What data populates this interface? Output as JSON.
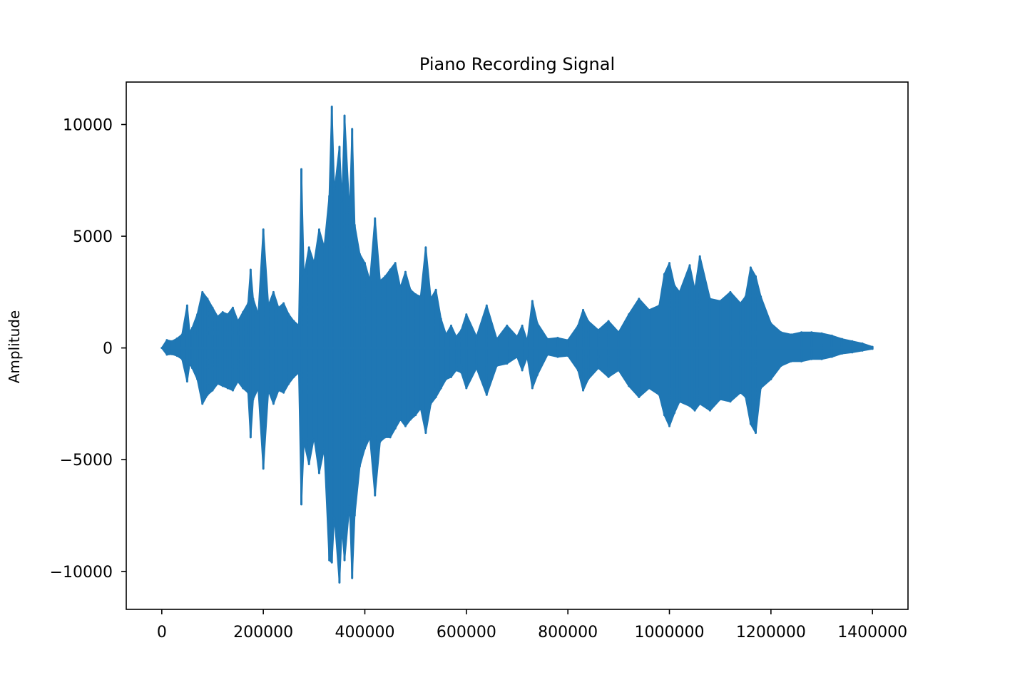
{
  "chart_data": {
    "type": "line",
    "title": "Piano Recording Signal",
    "xlabel": "",
    "ylabel": "Amplitude",
    "xlim": [
      -70000,
      1470000
    ],
    "ylim": [
      -11700,
      11900
    ],
    "grid": false,
    "legend": "none",
    "x_ticks": [
      0,
      200000,
      400000,
      600000,
      800000,
      1000000,
      1200000,
      1400000
    ],
    "x_tick_labels": [
      "0",
      "200000",
      "400000",
      "600000",
      "800000",
      "1000000",
      "1200000",
      "1400000"
    ],
    "y_ticks": [
      -10000,
      -5000,
      0,
      5000,
      10000
    ],
    "y_tick_labels": [
      "−10000",
      "−5000",
      "0",
      "5000",
      "10000"
    ],
    "series": [
      {
        "color": "#1f77b4",
        "x": [
          0,
          10000,
          20000,
          30000,
          40000,
          50000,
          55000,
          60000,
          70000,
          80000,
          90000,
          100000,
          110000,
          120000,
          130000,
          140000,
          150000,
          160000,
          170000,
          175000,
          180000,
          190000,
          200000,
          210000,
          220000,
          230000,
          240000,
          250000,
          260000,
          270000,
          275000,
          280000,
          290000,
          300000,
          310000,
          320000,
          330000,
          335000,
          340000,
          350000,
          355000,
          360000,
          370000,
          375000,
          380000,
          390000,
          400000,
          410000,
          420000,
          430000,
          440000,
          450000,
          460000,
          470000,
          480000,
          490000,
          500000,
          510000,
          520000,
          530000,
          540000,
          550000,
          560000,
          570000,
          580000,
          590000,
          600000,
          620000,
          640000,
          660000,
          680000,
          700000,
          710000,
          720000,
          730000,
          740000,
          760000,
          780000,
          800000,
          820000,
          830000,
          840000,
          860000,
          880000,
          900000,
          920000,
          940000,
          960000,
          980000,
          990000,
          1000000,
          1010000,
          1020000,
          1040000,
          1050000,
          1060000,
          1080000,
          1100000,
          1120000,
          1140000,
          1150000,
          1160000,
          1170000,
          1180000,
          1200000,
          1220000,
          1240000,
          1260000,
          1280000,
          1300000,
          1320000,
          1340000,
          1360000,
          1380000,
          1400000
        ],
        "y_max": [
          0,
          350,
          300,
          420,
          600,
          1900,
          700,
          900,
          1500,
          2500,
          2200,
          1800,
          1400,
          1600,
          1500,
          1800,
          1200,
          1600,
          2000,
          3500,
          2200,
          1500,
          5300,
          1900,
          2500,
          1800,
          2000,
          1500,
          1200,
          1000,
          8000,
          3200,
          4500,
          3800,
          5300,
          4500,
          6800,
          10800,
          7000,
          9000,
          6500,
          10400,
          6000,
          9800,
          5500,
          4200,
          3800,
          3000,
          5800,
          3000,
          3200,
          3500,
          3800,
          2700,
          3400,
          2600,
          2400,
          2300,
          4500,
          2200,
          2600,
          1300,
          600,
          1000,
          500,
          800,
          1500,
          500,
          1900,
          400,
          1000,
          500,
          1000,
          300,
          2100,
          1100,
          400,
          450,
          350,
          1000,
          1700,
          1200,
          800,
          1200,
          700,
          1500,
          2200,
          1700,
          1900,
          3300,
          3800,
          2800,
          2500,
          3700,
          2600,
          4100,
          2200,
          2100,
          2500,
          2000,
          2300,
          3600,
          3200,
          2300,
          1100,
          700,
          600,
          700,
          700,
          650,
          550,
          400,
          300,
          200,
          50
        ],
        "y_min": [
          0,
          -300,
          -280,
          -350,
          -500,
          -1500,
          -700,
          -900,
          -1400,
          -2500,
          -2100,
          -1900,
          -1600,
          -1700,
          -1800,
          -1900,
          -1500,
          -1800,
          -2000,
          -4000,
          -2300,
          -1800,
          -5400,
          -1900,
          -2500,
          -1900,
          -2000,
          -1600,
          -1300,
          -1100,
          -7000,
          -4200,
          -5200,
          -4000,
          -5600,
          -4500,
          -9500,
          -9600,
          -7500,
          -10500,
          -8000,
          -9500,
          -7000,
          -10300,
          -7500,
          -5300,
          -4500,
          -4000,
          -6600,
          -4200,
          -4000,
          -4000,
          -3600,
          -3200,
          -3500,
          -3200,
          -3000,
          -2700,
          -3800,
          -2500,
          -2200,
          -1800,
          -1400,
          -1300,
          -1000,
          -1100,
          -1800,
          -900,
          -2100,
          -800,
          -700,
          -400,
          -1000,
          -400,
          -1800,
          -1200,
          -300,
          -400,
          -350,
          -1000,
          -1900,
          -1400,
          -900,
          -1300,
          -1000,
          -1700,
          -2200,
          -1800,
          -2100,
          -3000,
          -3500,
          -2900,
          -2400,
          -2600,
          -2800,
          -2500,
          -2800,
          -2300,
          -2400,
          -2000,
          -2200,
          -3400,
          -3800,
          -1800,
          -1400,
          -800,
          -600,
          -600,
          -500,
          -500,
          -400,
          -250,
          -200,
          -120,
          -40
        ]
      }
    ]
  }
}
